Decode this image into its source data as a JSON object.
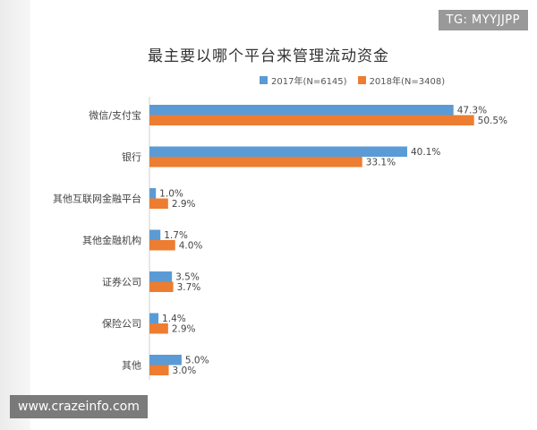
{
  "overlays": {
    "tg_text": "TG: MYYJJPP",
    "site_text": "www.crazeinfo.com"
  },
  "colors": {
    "series_2017": "#5b9bd5",
    "series_2018": "#ed7d31"
  },
  "chart_data": {
    "type": "bar",
    "orientation": "horizontal",
    "title": "最主要以哪个平台来管理流动资金",
    "categories": [
      "微信/支付宝",
      "银行",
      "其他互联网金融平台",
      "其他金融机构",
      "证券公司",
      "保险公司",
      "其他"
    ],
    "series": [
      {
        "name": "2017年(N=6145)",
        "values": [
          47.3,
          40.1,
          1.0,
          1.7,
          3.5,
          1.4,
          5.0
        ],
        "labels": [
          "47.3%",
          "40.1%",
          "1.0%",
          "1.7%",
          "3.5%",
          "1.4%",
          "5.0%"
        ]
      },
      {
        "name": "2018年(N=3408)",
        "values": [
          50.5,
          33.1,
          2.9,
          4.0,
          3.7,
          2.9,
          3.0
        ],
        "labels": [
          "50.5%",
          "33.1%",
          "2.9%",
          "4.0%",
          "3.7%",
          "2.9%",
          "3.0%"
        ]
      }
    ],
    "xlim": [
      0,
      55
    ],
    "grid": false,
    "legend_position": "top-right"
  }
}
